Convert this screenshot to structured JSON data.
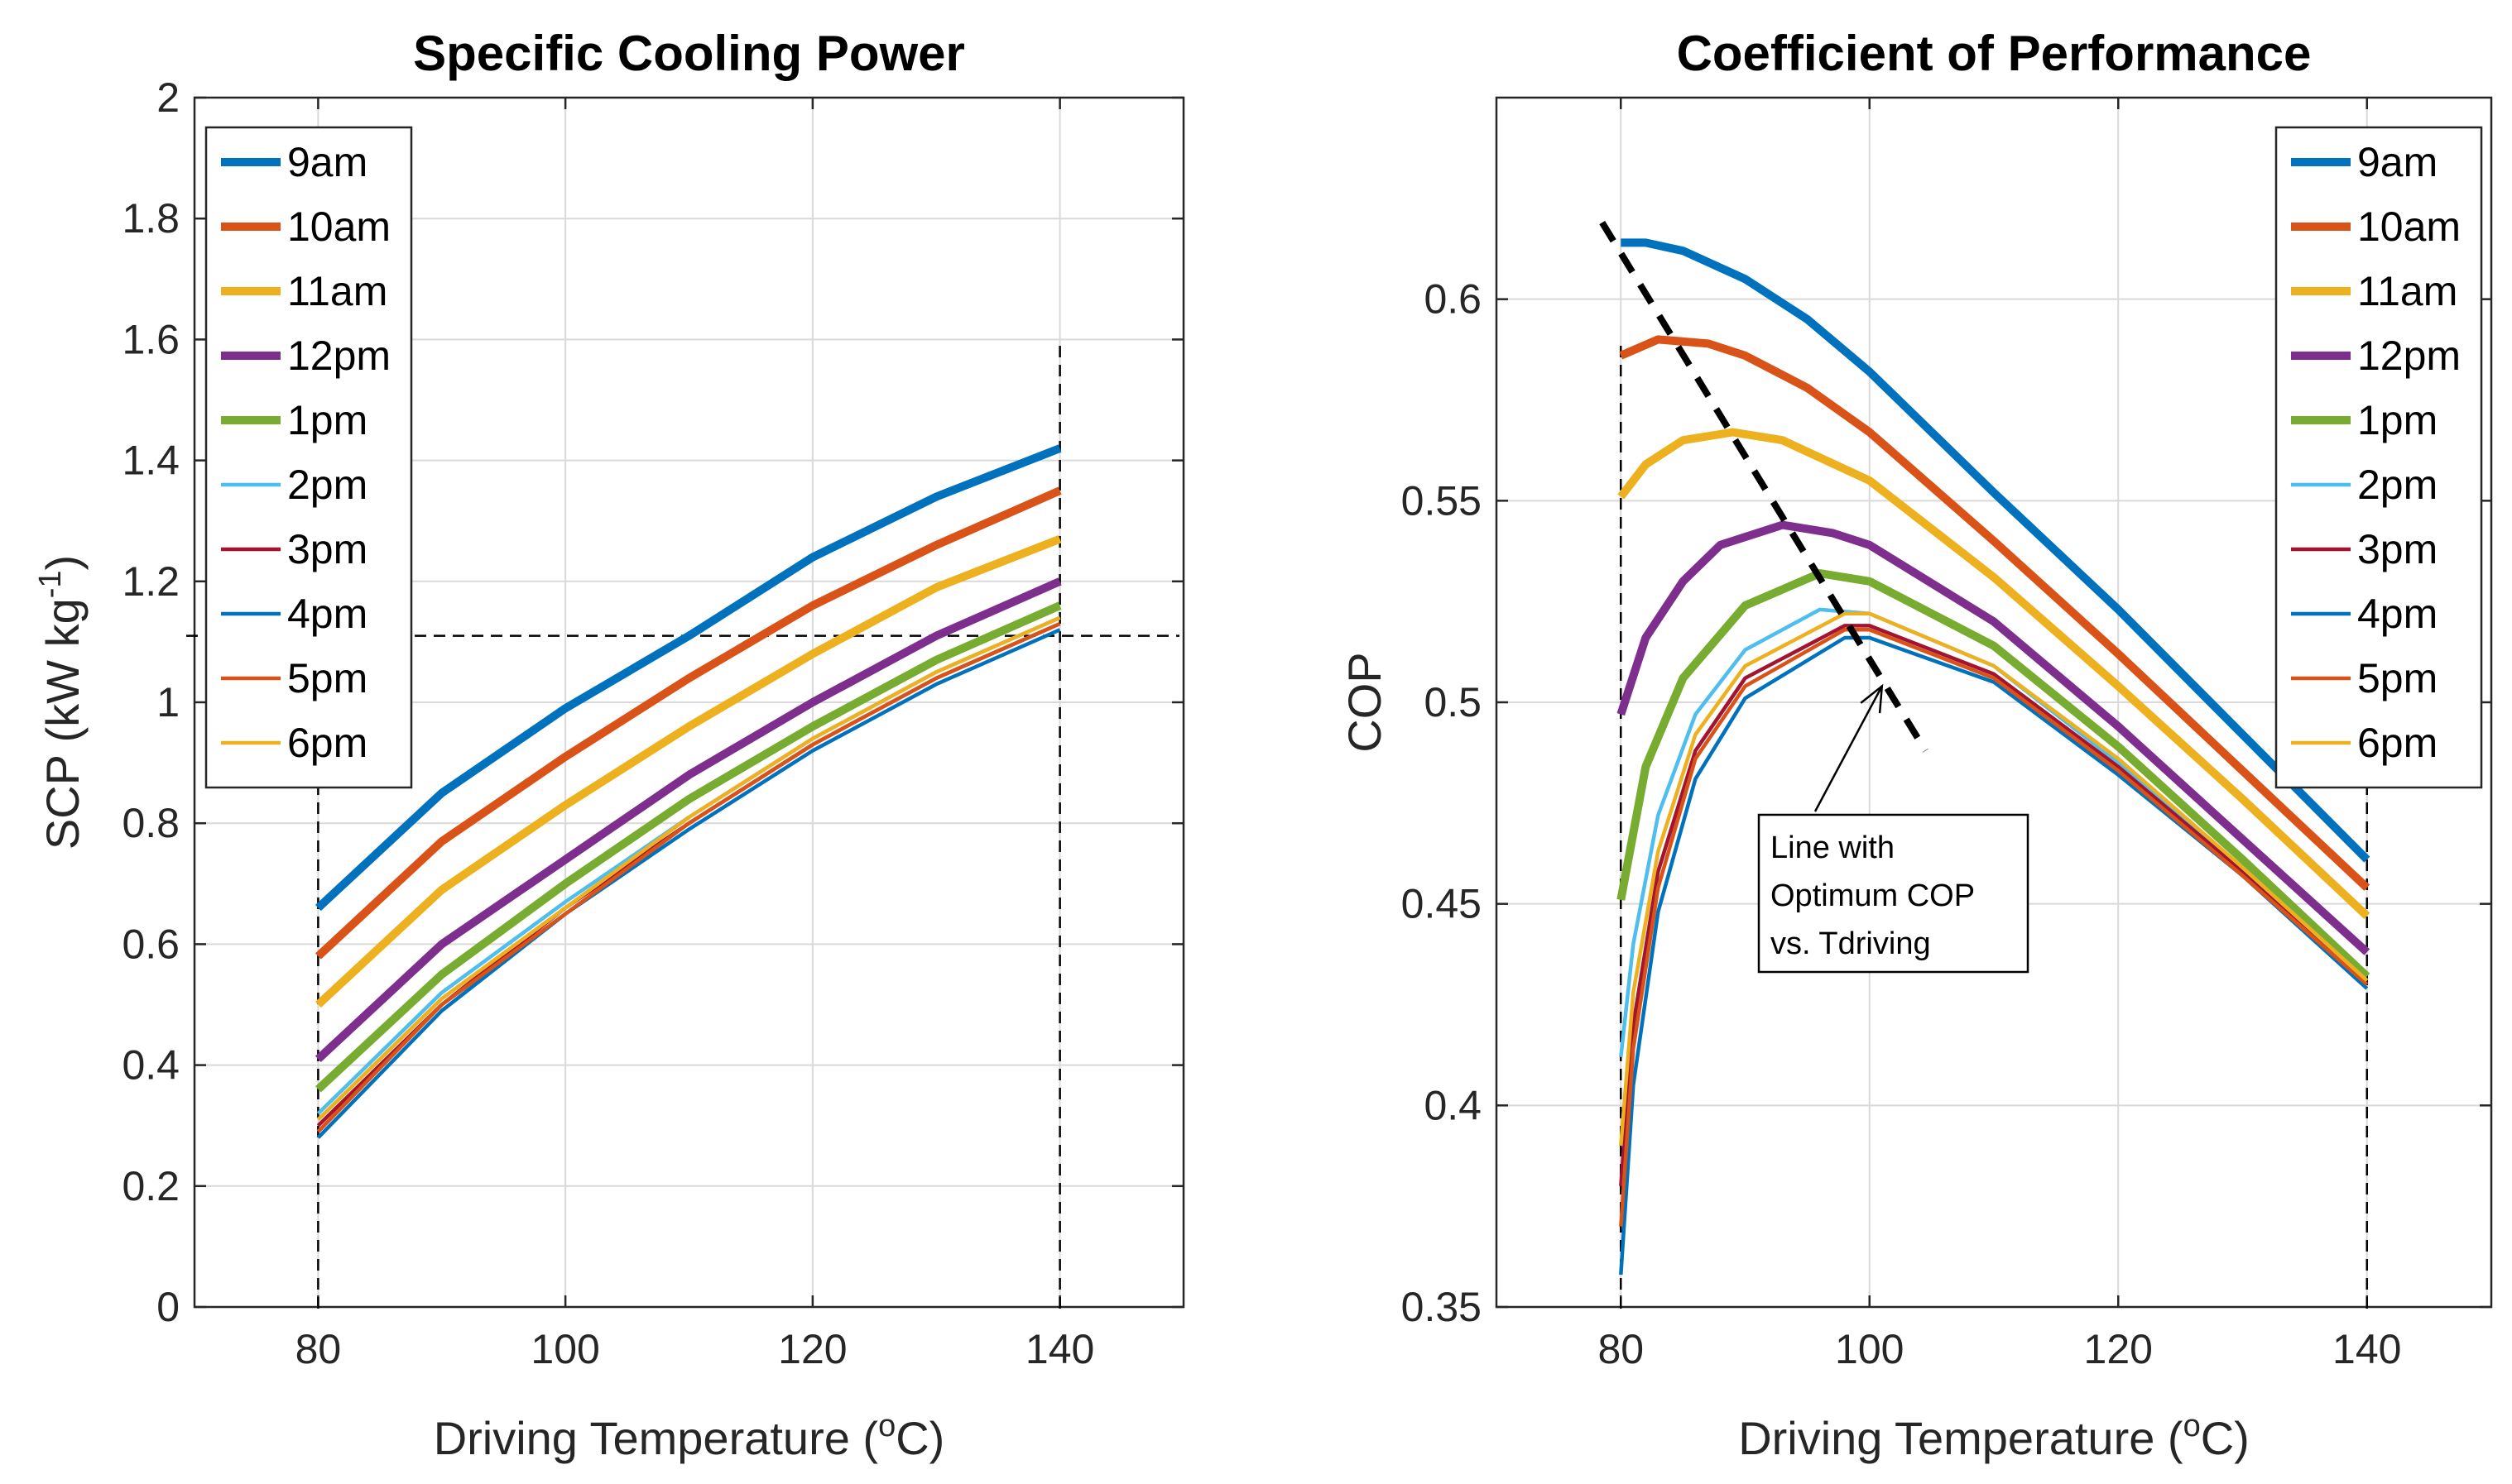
{
  "chart_data": [
    {
      "type": "line",
      "title": "Specific Cooling Power",
      "xlabel": "Driving Temperature (",
      "xlabel_sup": "o",
      "xlabel_tail": "C)",
      "ylabel": "SCP (kW kg",
      "ylabel_sup": "-1",
      "ylabel_tail": ")",
      "xlim": [
        70,
        150
      ],
      "ylim": [
        0,
        2
      ],
      "xticks": [
        80,
        100,
        120,
        140
      ],
      "yticks": [
        0,
        0.2,
        0.4,
        0.6,
        0.8,
        1,
        1.2,
        1.4,
        1.6,
        1.8,
        2
      ],
      "legend_position": "top-left",
      "reference_lines": {
        "vertical_x": [
          80,
          140
        ],
        "horizontal_y": [
          1.11
        ]
      },
      "series": [
        {
          "name": "9am",
          "color": "#0072BD",
          "thick": true,
          "x": [
            80,
            90,
            100,
            110,
            120,
            130,
            140
          ],
          "values": [
            0.66,
            0.85,
            0.99,
            1.11,
            1.24,
            1.34,
            1.42
          ]
        },
        {
          "name": "10am",
          "color": "#D95319",
          "thick": true,
          "x": [
            80,
            90,
            100,
            110,
            120,
            130,
            140
          ],
          "values": [
            0.58,
            0.77,
            0.91,
            1.04,
            1.16,
            1.26,
            1.35
          ]
        },
        {
          "name": "11am",
          "color": "#EDB120",
          "thick": true,
          "x": [
            80,
            90,
            100,
            110,
            120,
            130,
            140
          ],
          "values": [
            0.5,
            0.69,
            0.83,
            0.96,
            1.08,
            1.19,
            1.27
          ]
        },
        {
          "name": "12pm",
          "color": "#7E2F8E",
          "thick": true,
          "x": [
            80,
            90,
            100,
            110,
            120,
            130,
            140
          ],
          "values": [
            0.41,
            0.6,
            0.74,
            0.88,
            1.0,
            1.11,
            1.2
          ]
        },
        {
          "name": "1pm",
          "color": "#77AC30",
          "thick": true,
          "x": [
            80,
            90,
            100,
            110,
            120,
            130,
            140
          ],
          "values": [
            0.36,
            0.55,
            0.7,
            0.84,
            0.96,
            1.07,
            1.16
          ]
        },
        {
          "name": "2pm",
          "color": "#4DBEEE",
          "thick": false,
          "x": [
            80,
            90,
            100,
            110,
            120,
            130,
            140
          ],
          "values": [
            0.32,
            0.52,
            0.67,
            0.81,
            0.94,
            1.05,
            1.14
          ]
        },
        {
          "name": "3pm",
          "color": "#A2142F",
          "thick": false,
          "x": [
            80,
            90,
            100,
            110,
            120,
            130,
            140
          ],
          "values": [
            0.3,
            0.5,
            0.66,
            0.8,
            0.93,
            1.04,
            1.13
          ]
        },
        {
          "name": "4pm",
          "color": "#0072BD",
          "thick": false,
          "x": [
            80,
            90,
            100,
            110,
            120,
            130,
            140
          ],
          "values": [
            0.28,
            0.49,
            0.65,
            0.79,
            0.92,
            1.03,
            1.12
          ]
        },
        {
          "name": "5pm",
          "color": "#D95319",
          "thick": false,
          "x": [
            80,
            90,
            100,
            110,
            120,
            130,
            140
          ],
          "values": [
            0.29,
            0.5,
            0.65,
            0.8,
            0.93,
            1.04,
            1.13
          ]
        },
        {
          "name": "6pm",
          "color": "#EDB120",
          "thick": false,
          "x": [
            80,
            90,
            100,
            110,
            120,
            130,
            140
          ],
          "values": [
            0.31,
            0.51,
            0.66,
            0.81,
            0.94,
            1.05,
            1.14
          ]
        }
      ]
    },
    {
      "type": "line",
      "title": "Coefficient of Performance",
      "xlabel": "Driving Temperature (",
      "xlabel_sup": "o",
      "xlabel_tail": "C)",
      "ylabel": "COP",
      "xlim": [
        70,
        150
      ],
      "ylim": [
        0.35,
        0.65
      ],
      "xticks": [
        80,
        100,
        120,
        140
      ],
      "yticks": [
        0.35,
        0.4,
        0.45,
        0.5,
        0.55,
        0.6
      ],
      "legend_position": "top-right",
      "reference_lines": {
        "vertical_x": [
          80,
          140
        ]
      },
      "optimum_line": {
        "x": [
          78.5,
          104.5
        ],
        "y": [
          0.619,
          0.488
        ]
      },
      "annotation": {
        "lines": [
          "Line with",
          "Optimum COP",
          "vs. Tdriving"
        ],
        "arrow_target": [
          101,
          0.504
        ]
      },
      "series": [
        {
          "name": "9am",
          "color": "#0072BD",
          "thick": true,
          "x": [
            80,
            82,
            85,
            90,
            95,
            100,
            110,
            120,
            130,
            140
          ],
          "values": [
            0.614,
            0.614,
            0.612,
            0.605,
            0.595,
            0.582,
            0.552,
            0.523,
            0.492,
            0.461
          ]
        },
        {
          "name": "10am",
          "color": "#D95319",
          "thick": true,
          "x": [
            80,
            83,
            87,
            90,
            95,
            100,
            110,
            120,
            130,
            140
          ],
          "values": [
            0.586,
            0.59,
            0.589,
            0.586,
            0.578,
            0.567,
            0.54,
            0.512,
            0.483,
            0.454
          ]
        },
        {
          "name": "11am",
          "color": "#EDB120",
          "thick": true,
          "x": [
            80,
            82,
            85,
            89,
            93,
            100,
            110,
            120,
            130,
            140
          ],
          "values": [
            0.551,
            0.559,
            0.565,
            0.567,
            0.565,
            0.555,
            0.531,
            0.504,
            0.476,
            0.447
          ]
        },
        {
          "name": "12pm",
          "color": "#7E2F8E",
          "thick": true,
          "x": [
            80,
            82,
            85,
            88,
            93,
            97,
            100,
            110,
            120,
            130,
            140
          ],
          "values": [
            0.497,
            0.516,
            0.53,
            0.539,
            0.544,
            0.542,
            0.539,
            0.52,
            0.494,
            0.466,
            0.438
          ]
        },
        {
          "name": "1pm",
          "color": "#77AC30",
          "thick": true,
          "x": [
            80,
            82,
            85,
            90,
            96,
            100,
            110,
            120,
            130,
            140
          ],
          "values": [
            0.451,
            0.484,
            0.506,
            0.524,
            0.532,
            0.53,
            0.514,
            0.489,
            0.461,
            0.432
          ]
        },
        {
          "name": "2pm",
          "color": "#4DBEEE",
          "thick": false,
          "x": [
            80,
            81,
            83,
            86,
            90,
            96,
            100,
            110,
            120,
            130,
            140
          ],
          "values": [
            0.412,
            0.44,
            0.472,
            0.497,
            0.513,
            0.523,
            0.522,
            0.509,
            0.485,
            0.459,
            0.431
          ]
        },
        {
          "name": "3pm",
          "color": "#A2142F",
          "thick": false,
          "x": [
            80,
            81,
            83,
            86,
            90,
            98,
            100,
            110,
            120,
            130,
            140
          ],
          "values": [
            0.38,
            0.42,
            0.458,
            0.488,
            0.506,
            0.519,
            0.519,
            0.507,
            0.484,
            0.458,
            0.43
          ]
        },
        {
          "name": "4pm",
          "color": "#0072BD",
          "thick": false,
          "x": [
            80,
            81,
            83,
            86,
            90,
            98,
            100,
            110,
            120,
            130,
            140
          ],
          "values": [
            0.358,
            0.405,
            0.448,
            0.481,
            0.501,
            0.516,
            0.516,
            0.505,
            0.482,
            0.457,
            0.429
          ]
        },
        {
          "name": "5pm",
          "color": "#D95319",
          "thick": false,
          "x": [
            80,
            81,
            83,
            86,
            90,
            98,
            100,
            110,
            120,
            130,
            140
          ],
          "values": [
            0.37,
            0.414,
            0.454,
            0.486,
            0.504,
            0.518,
            0.518,
            0.506,
            0.483,
            0.457,
            0.43
          ]
        },
        {
          "name": "6pm",
          "color": "#EDB120",
          "thick": false,
          "x": [
            80,
            81,
            83,
            86,
            90,
            98,
            100,
            110,
            120,
            130,
            140
          ],
          "values": [
            0.39,
            0.428,
            0.463,
            0.492,
            0.509,
            0.522,
            0.522,
            0.509,
            0.486,
            0.459,
            0.431
          ]
        }
      ]
    }
  ]
}
